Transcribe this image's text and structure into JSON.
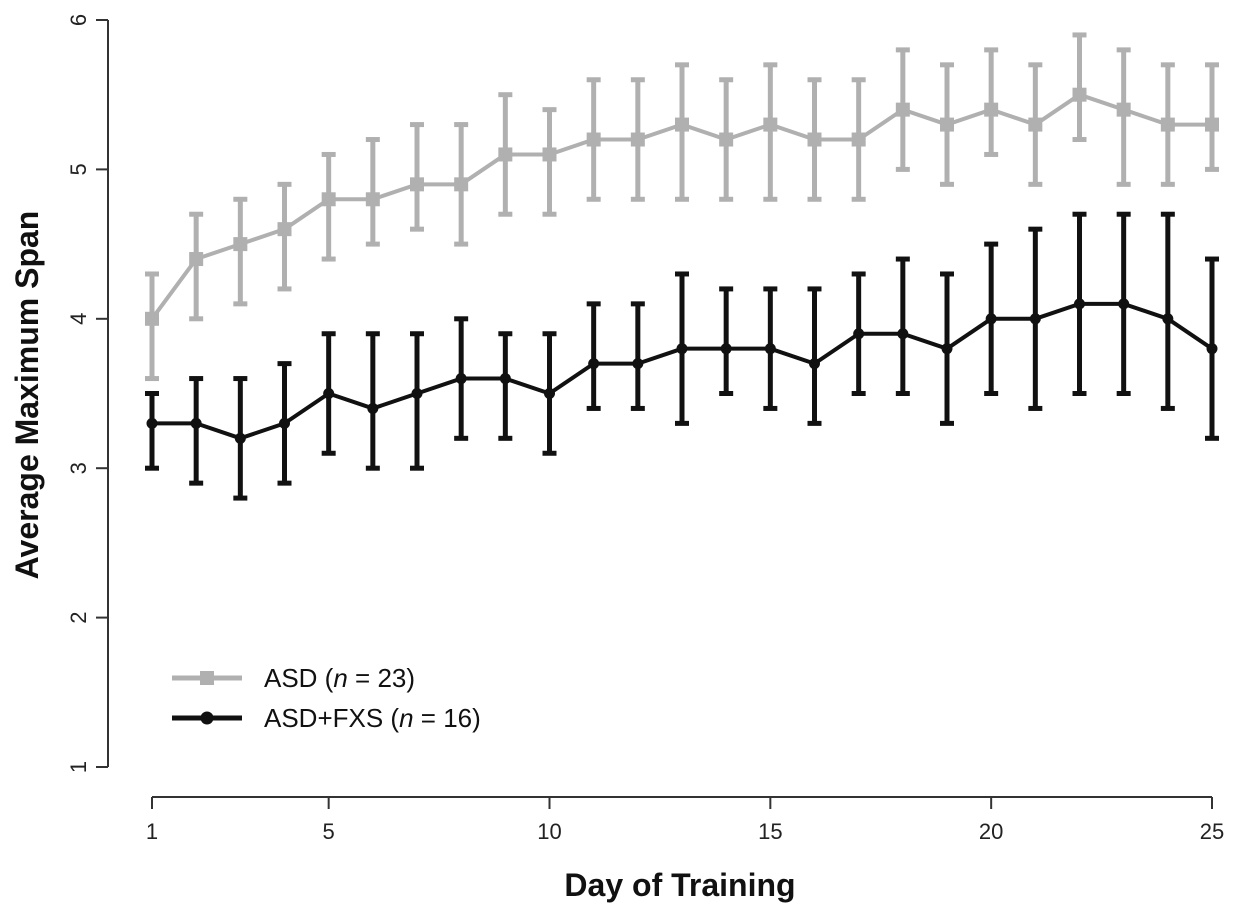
{
  "chart_data": {
    "type": "line",
    "title": "",
    "xlabel": "Day of Training",
    "ylabel": "Average Maximum Span",
    "xlim": [
      1,
      25
    ],
    "ylim": [
      1,
      6
    ],
    "xticks": [
      1,
      5,
      10,
      15,
      20,
      25
    ],
    "yticks": [
      1,
      2,
      3,
      4,
      5,
      6
    ],
    "grid": false,
    "legend_position": "bottom-left",
    "x": [
      1,
      2,
      3,
      4,
      5,
      6,
      7,
      8,
      9,
      10,
      11,
      12,
      13,
      14,
      15,
      16,
      17,
      18,
      19,
      20,
      21,
      22,
      23,
      24,
      25
    ],
    "series": [
      {
        "name": "ASD (n = 23)",
        "legend_prefix": "ASD (",
        "legend_italic": "n",
        "legend_suffix": " = 23)",
        "color": "#b0b0b0",
        "marker": "square",
        "values": [
          4.0,
          4.4,
          4.5,
          4.6,
          4.8,
          4.8,
          4.9,
          4.9,
          5.1,
          5.1,
          5.2,
          5.2,
          5.3,
          5.2,
          5.3,
          5.2,
          5.2,
          5.4,
          5.3,
          5.4,
          5.3,
          5.5,
          5.4,
          5.3,
          5.3
        ],
        "lower": [
          3.6,
          4.0,
          4.1,
          4.2,
          4.4,
          4.5,
          4.6,
          4.5,
          4.7,
          4.7,
          4.8,
          4.8,
          4.8,
          4.8,
          4.8,
          4.8,
          4.8,
          5.0,
          4.9,
          5.1,
          4.9,
          5.2,
          4.9,
          4.9,
          5.0
        ],
        "upper": [
          4.3,
          4.7,
          4.8,
          4.9,
          5.1,
          5.2,
          5.3,
          5.3,
          5.5,
          5.4,
          5.6,
          5.6,
          5.7,
          5.6,
          5.7,
          5.6,
          5.6,
          5.8,
          5.7,
          5.8,
          5.7,
          5.9,
          5.8,
          5.7,
          5.7
        ]
      },
      {
        "name": "ASD+FXS (n = 16)",
        "legend_prefix": "ASD+FXS (",
        "legend_italic": "n",
        "legend_suffix": " = 16)",
        "color": "#111111",
        "marker": "circle",
        "values": [
          3.3,
          3.3,
          3.2,
          3.3,
          3.5,
          3.4,
          3.5,
          3.6,
          3.6,
          3.5,
          3.7,
          3.7,
          3.8,
          3.8,
          3.8,
          3.7,
          3.9,
          3.9,
          3.8,
          4.0,
          4.0,
          4.1,
          4.1,
          4.0,
          3.8
        ],
        "lower": [
          3.0,
          2.9,
          2.8,
          2.9,
          3.1,
          3.0,
          3.0,
          3.2,
          3.2,
          3.1,
          3.4,
          3.4,
          3.3,
          3.5,
          3.4,
          3.3,
          3.5,
          3.5,
          3.3,
          3.5,
          3.4,
          3.5,
          3.5,
          3.4,
          3.2
        ],
        "upper": [
          3.5,
          3.6,
          3.6,
          3.7,
          3.9,
          3.9,
          3.9,
          4.0,
          3.9,
          3.9,
          4.1,
          4.1,
          4.3,
          4.2,
          4.2,
          4.2,
          4.3,
          4.4,
          4.3,
          4.5,
          4.6,
          4.7,
          4.7,
          4.7,
          4.4
        ]
      }
    ]
  }
}
